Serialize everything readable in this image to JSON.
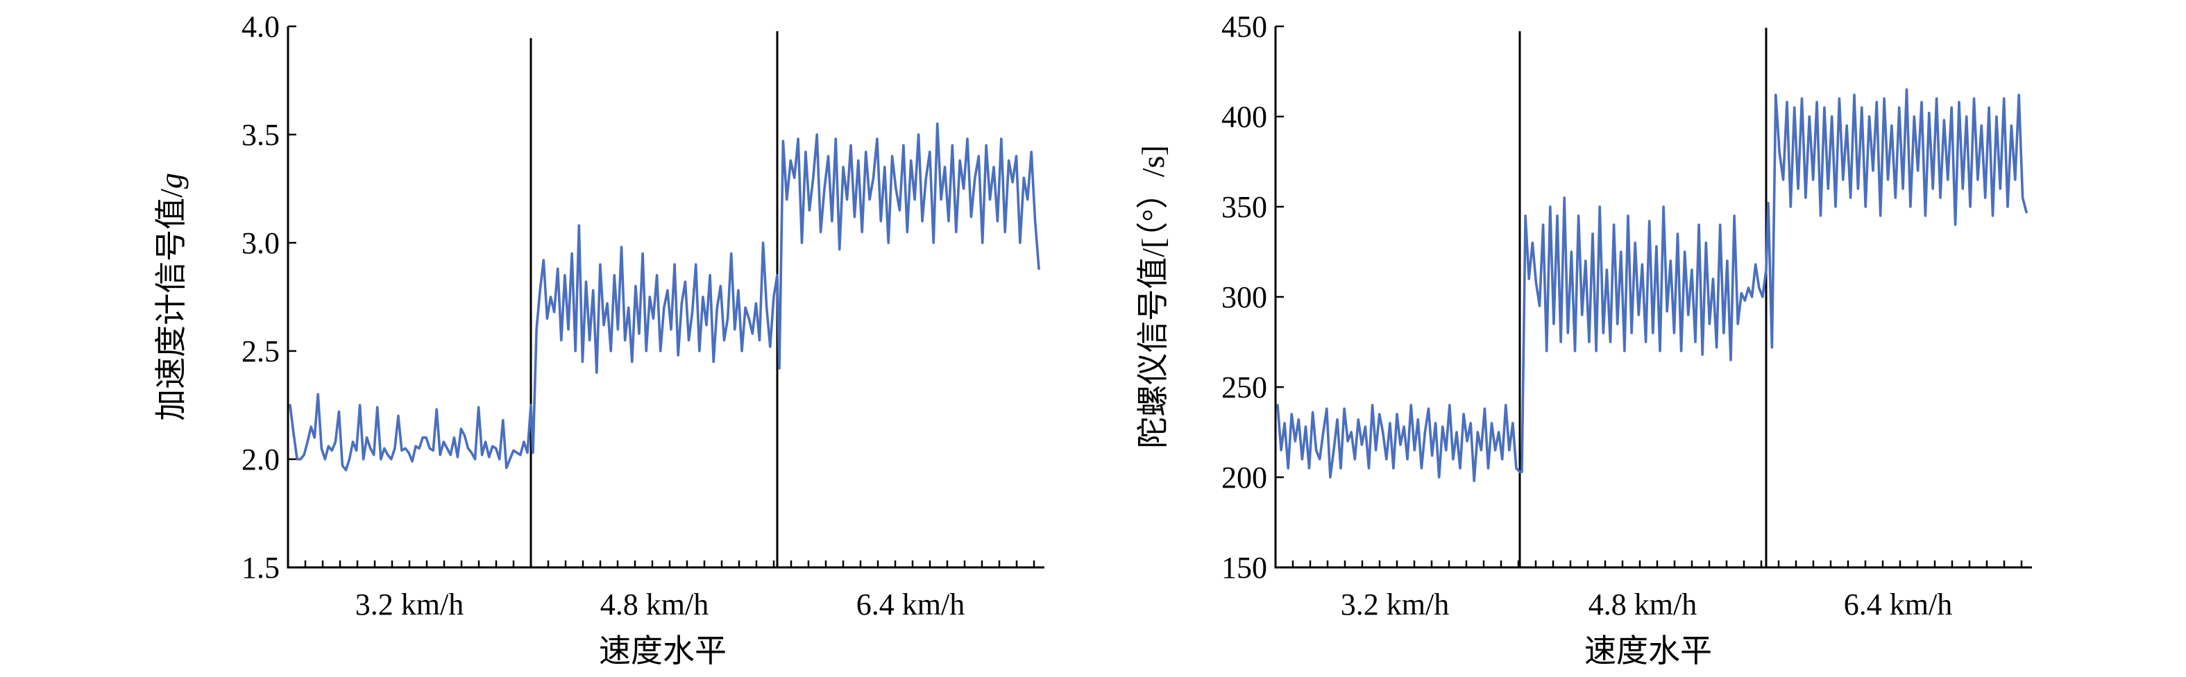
{
  "chart_data": [
    {
      "type": "line",
      "xlabel": "速度水平",
      "ylabel_main": "加速度计信号值/",
      "ylabel_unit": "g",
      "ylim": [
        1.5,
        4.0
      ],
      "yticks": [
        1.5,
        2.0,
        2.5,
        3.0,
        3.5,
        4.0
      ],
      "ytick_labels": [
        "1.5",
        "2.0",
        "2.5",
        "3.0",
        "3.5",
        "4.0"
      ],
      "categories": [
        "3.2 km/h",
        "4.8 km/h",
        "6.4 km/h"
      ],
      "line_color": "#4a6fbf",
      "levels": [
        {
          "category": "3.2 km/h",
          "values": [
            2.25,
            2.12,
            2.0,
            2.0,
            2.02,
            2.08,
            2.15,
            2.1,
            2.3,
            2.05,
            2.0,
            2.06,
            2.04,
            2.08,
            2.22,
            1.97,
            1.95,
            2.0,
            2.08,
            2.04,
            2.25,
            2.0,
            2.1,
            2.05,
            2.02,
            2.24,
            2.0,
            2.05,
            2.02,
            2.0,
            2.05,
            2.2,
            2.04,
            2.05,
            2.03,
            1.99,
            2.06,
            2.05,
            2.1,
            2.1,
            2.05,
            2.04,
            2.23,
            2.02,
            2.08,
            2.05,
            2.02,
            2.1,
            2.01,
            2.14,
            2.11,
            2.05,
            2.03,
            2.0,
            2.24,
            2.02,
            2.08,
            2.01,
            2.06,
            2.05,
            2.0,
            2.18,
            1.96,
            2.0,
            2.04,
            2.03,
            2.02,
            2.08,
            2.03,
            2.25
          ]
        },
        {
          "category": "4.8 km/h",
          "values": [
            2.03,
            2.6,
            2.78,
            2.92,
            2.65,
            2.75,
            2.68,
            2.88,
            2.55,
            2.85,
            2.6,
            2.95,
            2.5,
            3.08,
            2.45,
            2.82,
            2.55,
            2.78,
            2.4,
            2.9,
            2.62,
            2.72,
            2.5,
            2.85,
            2.6,
            2.98,
            2.55,
            2.7,
            2.45,
            2.8,
            2.58,
            2.95,
            2.5,
            2.75,
            2.65,
            2.85,
            2.5,
            2.7,
            2.78,
            2.6,
            2.9,
            2.48,
            2.72,
            2.82,
            2.55,
            2.68,
            2.9,
            2.5,
            2.75,
            2.62,
            2.85,
            2.45,
            2.7,
            2.8,
            2.55,
            2.65,
            2.95,
            2.6,
            2.78,
            2.5,
            2.7,
            2.65,
            2.58,
            2.72,
            2.55,
            3.0,
            2.7,
            2.52,
            2.75,
            2.85
          ]
        },
        {
          "category": "6.4 km/h",
          "values": [
            2.42,
            3.47,
            3.2,
            3.38,
            3.3,
            3.48,
            3.0,
            3.42,
            3.15,
            3.3,
            3.5,
            3.05,
            3.25,
            3.4,
            3.1,
            3.48,
            2.97,
            3.35,
            3.2,
            3.45,
            3.12,
            3.38,
            3.05,
            3.42,
            3.2,
            3.3,
            3.48,
            3.1,
            3.35,
            3.0,
            3.4,
            3.25,
            3.15,
            3.45,
            3.05,
            3.38,
            3.2,
            3.5,
            3.1,
            3.3,
            3.42,
            3.0,
            3.55,
            3.2,
            3.35,
            3.1,
            3.45,
            3.05,
            3.38,
            3.25,
            3.48,
            3.12,
            3.3,
            3.4,
            3.0,
            3.45,
            3.2,
            3.35,
            3.1,
            3.48,
            3.05,
            3.38,
            3.28,
            3.4,
            3.0,
            3.3,
            3.2,
            3.42,
            3.1,
            2.88
          ]
        }
      ]
    },
    {
      "type": "line",
      "xlabel": "速度水平",
      "ylabel_main": "陀螺仪信号值/[（°）/s]",
      "ylabel_unit": "",
      "ylim": [
        150,
        450
      ],
      "yticks": [
        150,
        200,
        250,
        300,
        350,
        400,
        450
      ],
      "ytick_labels": [
        "150",
        "200",
        "250",
        "300",
        "350",
        "400",
        "450"
      ],
      "categories": [
        "3.2 km/h",
        "4.8 km/h",
        "6.4 km/h"
      ],
      "line_color": "#4a6fbf",
      "levels": [
        {
          "category": "3.2 km/h",
          "values": [
            240,
            215,
            230,
            205,
            235,
            220,
            232,
            210,
            228,
            205,
            236,
            215,
            210,
            225,
            238,
            200,
            215,
            232,
            205,
            238,
            220,
            225,
            210,
            232,
            218,
            228,
            205,
            240,
            215,
            235,
            225,
            210,
            230,
            205,
            235,
            218,
            228,
            210,
            240,
            215,
            232,
            205,
            225,
            238,
            212,
            230,
            200,
            228,
            215,
            240,
            210,
            225,
            205,
            235,
            220,
            230,
            198,
            225,
            215,
            238,
            205,
            230,
            215,
            225,
            210,
            240,
            215,
            230,
            205,
            203
          ]
        },
        {
          "category": "4.8 km/h",
          "values": [
            203,
            345,
            310,
            330,
            308,
            295,
            340,
            270,
            350,
            285,
            345,
            275,
            355,
            280,
            325,
            270,
            345,
            290,
            320,
            275,
            335,
            270,
            350,
            280,
            315,
            275,
            340,
            285,
            325,
            270,
            345,
            280,
            330,
            290,
            318,
            275,
            342,
            280,
            328,
            270,
            350,
            292,
            320,
            280,
            335,
            270,
            325,
            290,
            315,
            275,
            340,
            268,
            330,
            285,
            310,
            272,
            340,
            280,
            320,
            265,
            345,
            285,
            302,
            298,
            305,
            300,
            318,
            305,
            300,
            315
          ]
        },
        {
          "category": "6.4 km/h",
          "values": [
            352,
            272,
            412,
            380,
            365,
            408,
            350,
            405,
            360,
            410,
            355,
            400,
            365,
            408,
            345,
            405,
            360,
            400,
            350,
            410,
            365,
            395,
            355,
            412,
            360,
            405,
            350,
            400,
            370,
            408,
            345,
            410,
            365,
            395,
            355,
            405,
            360,
            415,
            350,
            400,
            370,
            408,
            345,
            402,
            360,
            410,
            355,
            398,
            365,
            405,
            340,
            408,
            360,
            400,
            350,
            410,
            365,
            395,
            355,
            405,
            345,
            400,
            360,
            410,
            350,
            395,
            365,
            412,
            355,
            347
          ]
        }
      ]
    }
  ]
}
